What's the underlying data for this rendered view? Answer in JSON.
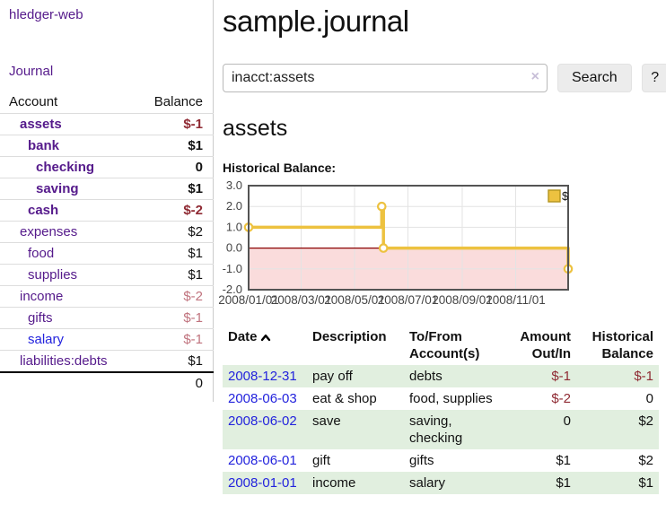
{
  "app": {
    "title": "hledger-web"
  },
  "colors": {
    "link_purple": "#551a8b",
    "link_blue": "#2323dd",
    "negative_strong": "#8f2a33",
    "negative_soft": "#c0737e",
    "row_stripe_green": "#e1efdf",
    "chart_series_gold": "#edc240",
    "chart_negative_region": "#fadcdc",
    "chart_zero_line": "#8b0000",
    "chart_border": "#545454",
    "chart_grid": "#e3e3e3"
  },
  "sidebar": {
    "journal_label": "Journal",
    "accounts_table": {
      "headers": {
        "account": "Account",
        "balance": "Balance"
      },
      "rows": [
        {
          "name": "assets",
          "balance": "$-1",
          "indent": 1,
          "bold": true,
          "neg": "strong"
        },
        {
          "name": "bank",
          "balance": "$1",
          "indent": 2,
          "bold": true,
          "neg": null
        },
        {
          "name": "checking",
          "balance": "0",
          "indent": 3,
          "bold": true,
          "neg": null
        },
        {
          "name": "saving",
          "balance": "$1",
          "indent": 3,
          "bold": true,
          "neg": null
        },
        {
          "name": "cash",
          "balance": "$-2",
          "indent": 2,
          "bold": true,
          "neg": "strong"
        },
        {
          "name": "expenses",
          "balance": "$2",
          "indent": 1,
          "bold": false,
          "neg": null
        },
        {
          "name": "food",
          "balance": "$1",
          "indent": 2,
          "bold": false,
          "neg": null
        },
        {
          "name": "supplies",
          "balance": "$1",
          "indent": 2,
          "bold": false,
          "neg": null
        },
        {
          "name": "income",
          "balance": "$-2",
          "indent": 1,
          "bold": false,
          "neg": "soft"
        },
        {
          "name": "gifts",
          "balance": "$-1",
          "indent": 2,
          "bold": false,
          "neg": "soft"
        },
        {
          "name": "salary",
          "balance": "$-1",
          "indent": 2,
          "bold": false,
          "neg": "soft",
          "unvisited": true
        },
        {
          "name": "liabilities:debts",
          "balance": "$1",
          "indent": 1,
          "bold": false,
          "neg": null
        }
      ],
      "total": "0"
    }
  },
  "main": {
    "page_title": "sample.journal",
    "search": {
      "value": "inacct:assets",
      "clear_icon": "×",
      "search_button": "Search",
      "help_button": "?"
    },
    "account_heading": "assets",
    "chart_label": "Historical Balance:",
    "register": {
      "headers": {
        "date": "Date",
        "description": "Description",
        "accounts": "To/From Account(s)",
        "amount": "Amount Out/In",
        "balance": "Historical Balance"
      },
      "sort": {
        "column": "date",
        "direction": "ascending"
      },
      "rows": [
        {
          "date": "2008-12-31",
          "description": "pay off",
          "accounts": "debts",
          "amount": "$-1",
          "amount_negative": true,
          "balance": "$-1",
          "balance_negative": true
        },
        {
          "date": "2008-06-03",
          "description": "eat & shop",
          "accounts": "food, supplies",
          "amount": "$-2",
          "amount_negative": true,
          "balance": "0",
          "balance_negative": false
        },
        {
          "date": "2008-06-02",
          "description": "save",
          "accounts": "saving, checking",
          "amount": "0",
          "amount_negative": false,
          "balance": "$2",
          "balance_negative": false
        },
        {
          "date": "2008-06-01",
          "description": "gift",
          "accounts": "gifts",
          "amount": "$1",
          "amount_negative": false,
          "balance": "$2",
          "balance_negative": false
        },
        {
          "date": "2008-01-01",
          "description": "income",
          "accounts": "salary",
          "amount": "$1",
          "amount_negative": false,
          "balance": "$1",
          "balance_negative": false
        }
      ]
    }
  },
  "chart_data": {
    "type": "line",
    "step": true,
    "title": "Historical Balance:",
    "x_range": [
      "2008-01-01",
      "2008-12-31"
    ],
    "ylim": [
      -2,
      3
    ],
    "grid": true,
    "legend_position": "top-right",
    "series": [
      {
        "name": "$",
        "color": "#edc240",
        "points": [
          [
            "2008-01-01",
            1
          ],
          [
            "2008-06-01",
            2
          ],
          [
            "2008-06-03",
            0
          ],
          [
            "2008-12-31",
            -1
          ]
        ]
      }
    ],
    "y_ticks": [
      {
        "value": 3,
        "label": "3.0"
      },
      {
        "value": 2,
        "label": "2.0"
      },
      {
        "value": 1,
        "label": "1.0"
      },
      {
        "value": 0,
        "label": "0.0"
      },
      {
        "value": -1,
        "label": "-1.0"
      },
      {
        "value": -2,
        "label": "-2.0"
      }
    ],
    "x_ticks": [
      {
        "date": "2008-01-01",
        "label": "2008/01/01"
      },
      {
        "date": "2008-03-01",
        "label": "2008/03/01"
      },
      {
        "date": "2008-05-01",
        "label": "2008/05/01"
      },
      {
        "date": "2008-07-01",
        "label": "2008/07/01"
      },
      {
        "date": "2008-09-01",
        "label": "2008/09/01"
      },
      {
        "date": "2008-11-01",
        "label": "2008/11/01"
      }
    ],
    "negative_region_fill": "#fadcdc",
    "zero_line_color": "#8b0000"
  }
}
